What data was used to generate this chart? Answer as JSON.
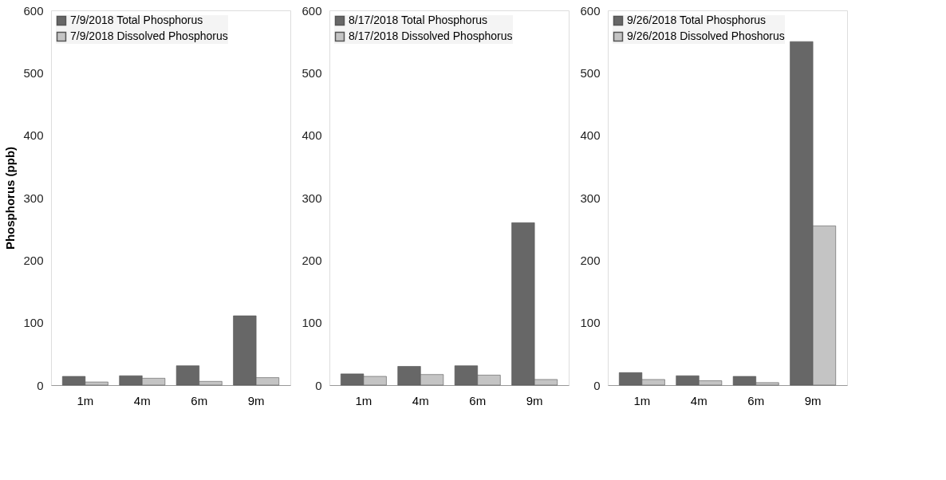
{
  "chart_data": [
    {
      "type": "bar",
      "ylabel": "Phosphorus (ppb)",
      "categories": [
        "1m",
        "4m",
        "6m",
        "9m"
      ],
      "series": [
        {
          "name": "7/9/2018 Total Phosphorus",
          "color": "#676767",
          "values": [
            14,
            15,
            31,
            111
          ]
        },
        {
          "name": "7/9/2018 Dissolved Phosphorus",
          "color": "#c4c4c4",
          "values": [
            5,
            11,
            6,
            12
          ]
        }
      ],
      "ylim": [
        0,
        600
      ],
      "yticks": [
        0,
        100,
        200,
        300,
        400,
        500,
        600
      ],
      "legend": "top left",
      "grid": false
    },
    {
      "type": "bar",
      "categories": [
        "1m",
        "4m",
        "6m",
        "9m"
      ],
      "series": [
        {
          "name": "8/17/2018 Total Phosphorus",
          "color": "#676767",
          "values": [
            18,
            30,
            31,
            260
          ]
        },
        {
          "name": "8/17/2018 Dissolved Phosphorus",
          "color": "#c4c4c4",
          "values": [
            14,
            17,
            16,
            9
          ]
        }
      ],
      "ylim": [
        0,
        600
      ],
      "yticks": [
        0,
        100,
        200,
        300,
        400,
        500,
        600
      ],
      "legend": "top left",
      "grid": false
    },
    {
      "type": "bar",
      "categories": [
        "1m",
        "4m",
        "6m",
        "9m"
      ],
      "series": [
        {
          "name": "9/26/2018 Total Phosphorus",
          "color": "#676767",
          "values": [
            20,
            15,
            14,
            550
          ]
        },
        {
          "name": "9/26/2018 Dissolved Phoshorus",
          "color": "#c4c4c4",
          "values": [
            9,
            7,
            4,
            255
          ]
        }
      ],
      "ylim": [
        0,
        600
      ],
      "yticks": [
        0,
        100,
        200,
        300,
        400,
        500,
        600
      ],
      "legend": "top left",
      "grid": false
    }
  ]
}
